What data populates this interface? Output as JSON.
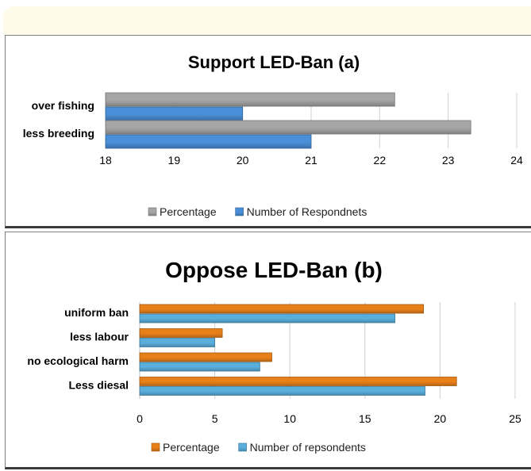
{
  "chart_data": [
    {
      "type": "bar",
      "orientation": "horizontal",
      "title": "Support LED-Ban (a)",
      "categories": [
        "over fishing",
        "less breeding"
      ],
      "series": [
        {
          "name": "Percentage",
          "values": [
            22.22,
            23.33
          ],
          "color": "#a6a6a6"
        },
        {
          "name": "Number of Respondnets",
          "values": [
            20,
            21
          ],
          "color": "#4a90d9"
        }
      ],
      "xlim": [
        18,
        24
      ],
      "xticks": [
        18,
        19,
        20,
        21,
        22,
        23,
        24
      ],
      "grid": "vertical",
      "legend": "bottom"
    },
    {
      "type": "bar",
      "orientation": "horizontal",
      "title": "Oppose LED-Ban (b)",
      "categories": [
        "uniform ban",
        "less labour",
        "no ecological harm",
        "Less diesal"
      ],
      "series": [
        {
          "name": "Percentage",
          "values": [
            18.9,
            5.5,
            8.8,
            21.1
          ],
          "color": "#e8801a"
        },
        {
          "name": "Number of repsondents",
          "values": [
            17,
            5,
            8,
            19
          ],
          "color": "#5aaedc"
        }
      ],
      "xlim": [
        0,
        25
      ],
      "xticks": [
        0,
        5,
        10,
        15,
        20,
        25
      ],
      "grid": "vertical",
      "legend": "bottom"
    }
  ]
}
